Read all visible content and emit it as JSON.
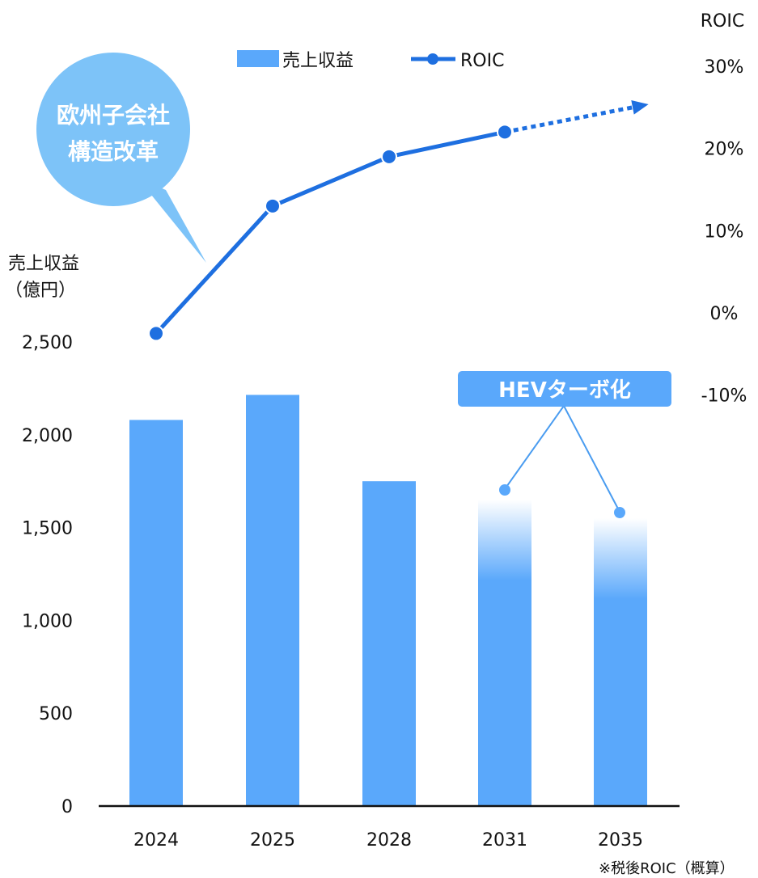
{
  "chart_data": {
    "type": "bar",
    "categories": [
      "2024",
      "2025",
      "2028",
      "2031",
      "2035"
    ],
    "series": [
      {
        "name": "売上収益",
        "type": "bar",
        "axis": "left",
        "values": [
          2080,
          2215,
          1750,
          1650,
          1550
        ]
      },
      {
        "name": "ROIC",
        "type": "line",
        "axis": "right",
        "values": [
          -2.5,
          13,
          19,
          22,
          null
        ],
        "projection_end": 25
      }
    ],
    "faded_bars": [
      "2031",
      "2035"
    ],
    "left_axis": {
      "title_line1": "売上収益",
      "title_line2": "（億円）",
      "ticks": [
        {
          "value": 0,
          "label": "0"
        },
        {
          "value": 500,
          "label": "500"
        },
        {
          "value": 1000,
          "label": "1,000"
        },
        {
          "value": 1500,
          "label": "1,500"
        },
        {
          "value": 2000,
          "label": "2,000"
        },
        {
          "value": 2500,
          "label": "2,500"
        }
      ],
      "ylim": [
        0,
        2500
      ]
    },
    "right_axis": {
      "title": "ROIC",
      "ticks": [
        {
          "value": -10,
          "label": "-10%"
        },
        {
          "value": 0,
          "label": "0%"
        },
        {
          "value": 10,
          "label": "10%"
        },
        {
          "value": 20,
          "label": "20%"
        },
        {
          "value": 30,
          "label": "30%"
        }
      ],
      "ylim": [
        -10,
        30
      ]
    },
    "legend": {
      "position": "top"
    },
    "annotations": {
      "bubble_line1": "欧州子会社",
      "bubble_line2": "構造改革",
      "callout": "HEVターボ化",
      "footnote": "※税後ROIC（概算）"
    }
  },
  "colors": {
    "bar": "#5aa8fb",
    "bar_fade": "#cfe8fc",
    "line": "#1e6fe0",
    "bubble": "#7dc3f8",
    "callout_bg": "#5aa8fb",
    "callout_line": "#4a9cf0",
    "axis": "#111111"
  }
}
